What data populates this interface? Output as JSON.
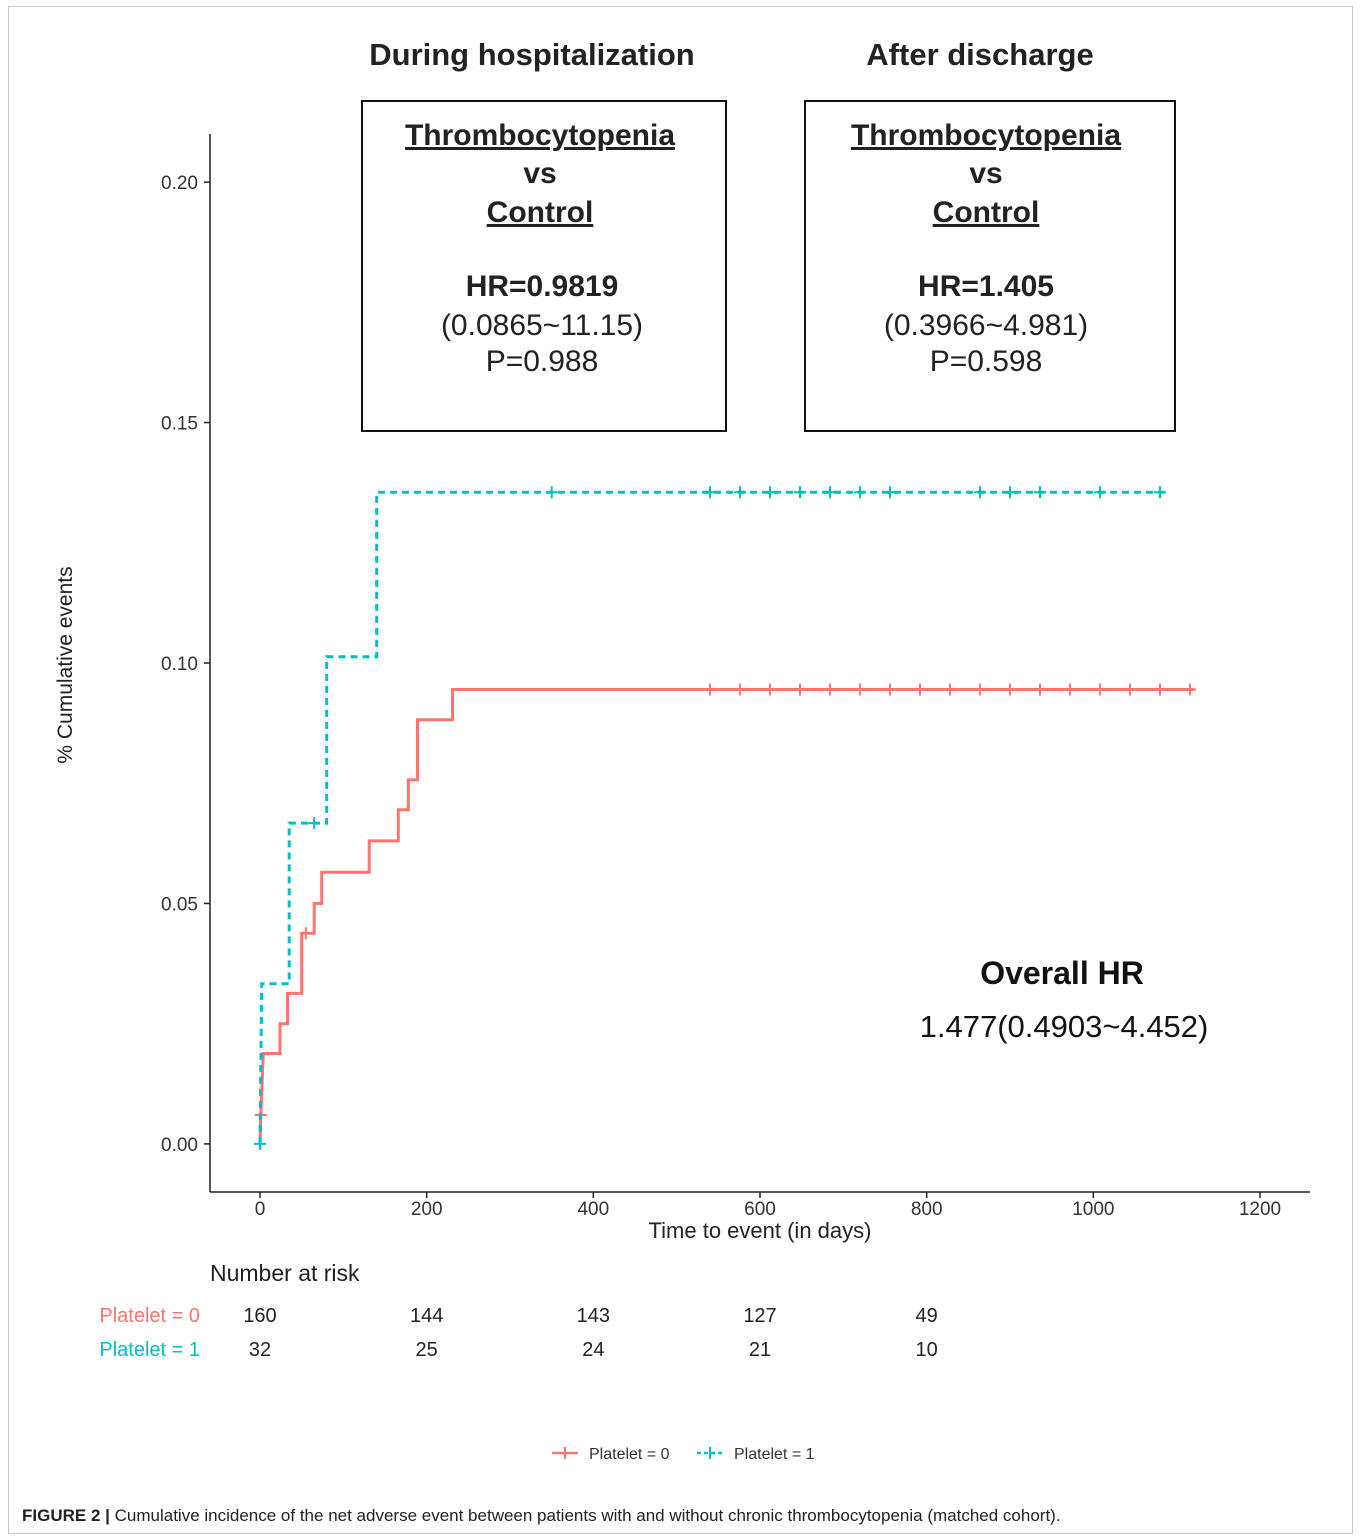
{
  "header": {
    "during_label": "During hospitalization",
    "after_label": "After discharge"
  },
  "boxes": [
    {
      "line1": "Thrombocytopenia",
      "line2": "vs",
      "line3": "Control",
      "hr": "HR=0.9819",
      "ci": "(0.0865~11.15)",
      "p": "P=0.988"
    },
    {
      "line1": "Thrombocytopenia",
      "line2": "vs",
      "line3": "Control",
      "hr": "HR=1.405",
      "ci": "(0.3966~4.981)",
      "p": "P=0.598"
    }
  ],
  "overall": {
    "title": "Overall HR",
    "value": "1.477(0.4903~4.452)"
  },
  "risk_table": {
    "title": "Number at risk",
    "rows": [
      {
        "label": "Platelet = 0",
        "color": "#f8766d",
        "values": [
          160,
          144,
          143,
          127,
          49
        ]
      },
      {
        "label": "Platelet = 1",
        "color": "#00bfc4",
        "values": [
          32,
          25,
          24,
          21,
          10
        ]
      }
    ],
    "times": [
      0,
      200,
      400,
      600,
      800
    ]
  },
  "caption": {
    "label": "FIGURE 2 |",
    "text": "Cumulative incidence of the net adverse event between patients with and without chronic thrombocytopenia (matched cohort)."
  },
  "chart_data": {
    "type": "line",
    "xlabel": "Time to event (in days)",
    "ylabel": "% Cumulative events",
    "xlim": [
      -60,
      1260
    ],
    "ylim": [
      -0.01,
      0.21
    ],
    "xticks": [
      0,
      200,
      400,
      600,
      800,
      1000,
      1200
    ],
    "yticks": [
      0.0,
      0.05,
      0.1,
      0.15,
      0.2
    ],
    "ytick_labels": [
      "0.00",
      "0.05",
      "0.10",
      "0.15",
      "0.20"
    ],
    "grid": false,
    "legend_position": "bottom",
    "series": [
      {
        "name": "Platelet = 0",
        "color": "#f8766d",
        "dash": "solid",
        "steps": [
          [
            0,
            0.0
          ],
          [
            1,
            0.006
          ],
          [
            4,
            0.0188
          ],
          [
            24,
            0.0188
          ],
          [
            24,
            0.025
          ],
          [
            33,
            0.025
          ],
          [
            33,
            0.0313
          ],
          [
            50,
            0.0313
          ],
          [
            50,
            0.0438
          ],
          [
            65,
            0.0438
          ],
          [
            65,
            0.05
          ],
          [
            74,
            0.05
          ],
          [
            74,
            0.0565
          ],
          [
            131,
            0.0565
          ],
          [
            131,
            0.063
          ],
          [
            166,
            0.063
          ],
          [
            166,
            0.0695
          ],
          [
            178,
            0.0695
          ],
          [
            178,
            0.0757
          ],
          [
            189,
            0.0757
          ],
          [
            189,
            0.0882
          ],
          [
            231,
            0.0882
          ],
          [
            231,
            0.0945
          ],
          [
            1120,
            0.0945
          ]
        ],
        "censor_times": [
          1,
          55,
          540,
          576,
          612,
          648,
          684,
          720,
          756,
          792,
          828,
          864,
          900,
          936,
          972,
          1008,
          1044,
          1080,
          1116
        ],
        "censor_values": [
          0.006,
          0.0438,
          0.0945,
          0.0945,
          0.0945,
          0.0945,
          0.0945,
          0.0945,
          0.0945,
          0.0945,
          0.0945,
          0.0945,
          0.0945,
          0.0945,
          0.0945,
          0.0945,
          0.0945,
          0.0945,
          0.0945
        ]
      },
      {
        "name": "Platelet = 1",
        "color": "#00bfc4",
        "dash": "dashed",
        "steps": [
          [
            0,
            0.0
          ],
          [
            2,
            0.0333
          ],
          [
            35,
            0.0333
          ],
          [
            35,
            0.0667
          ],
          [
            80,
            0.0667
          ],
          [
            80,
            0.1013
          ],
          [
            140,
            0.1013
          ],
          [
            140,
            0.1355
          ],
          [
            1085,
            0.1355
          ]
        ],
        "censor_times": [
          0,
          65,
          350,
          540,
          576,
          612,
          648,
          684,
          720,
          756,
          864,
          900,
          936,
          1008,
          1080
        ],
        "censor_values": [
          0.0,
          0.0667,
          0.1355,
          0.1355,
          0.1355,
          0.1355,
          0.1355,
          0.1355,
          0.1355,
          0.1355,
          0.1355,
          0.1355,
          0.1355,
          0.1355,
          0.1355
        ]
      }
    ]
  }
}
